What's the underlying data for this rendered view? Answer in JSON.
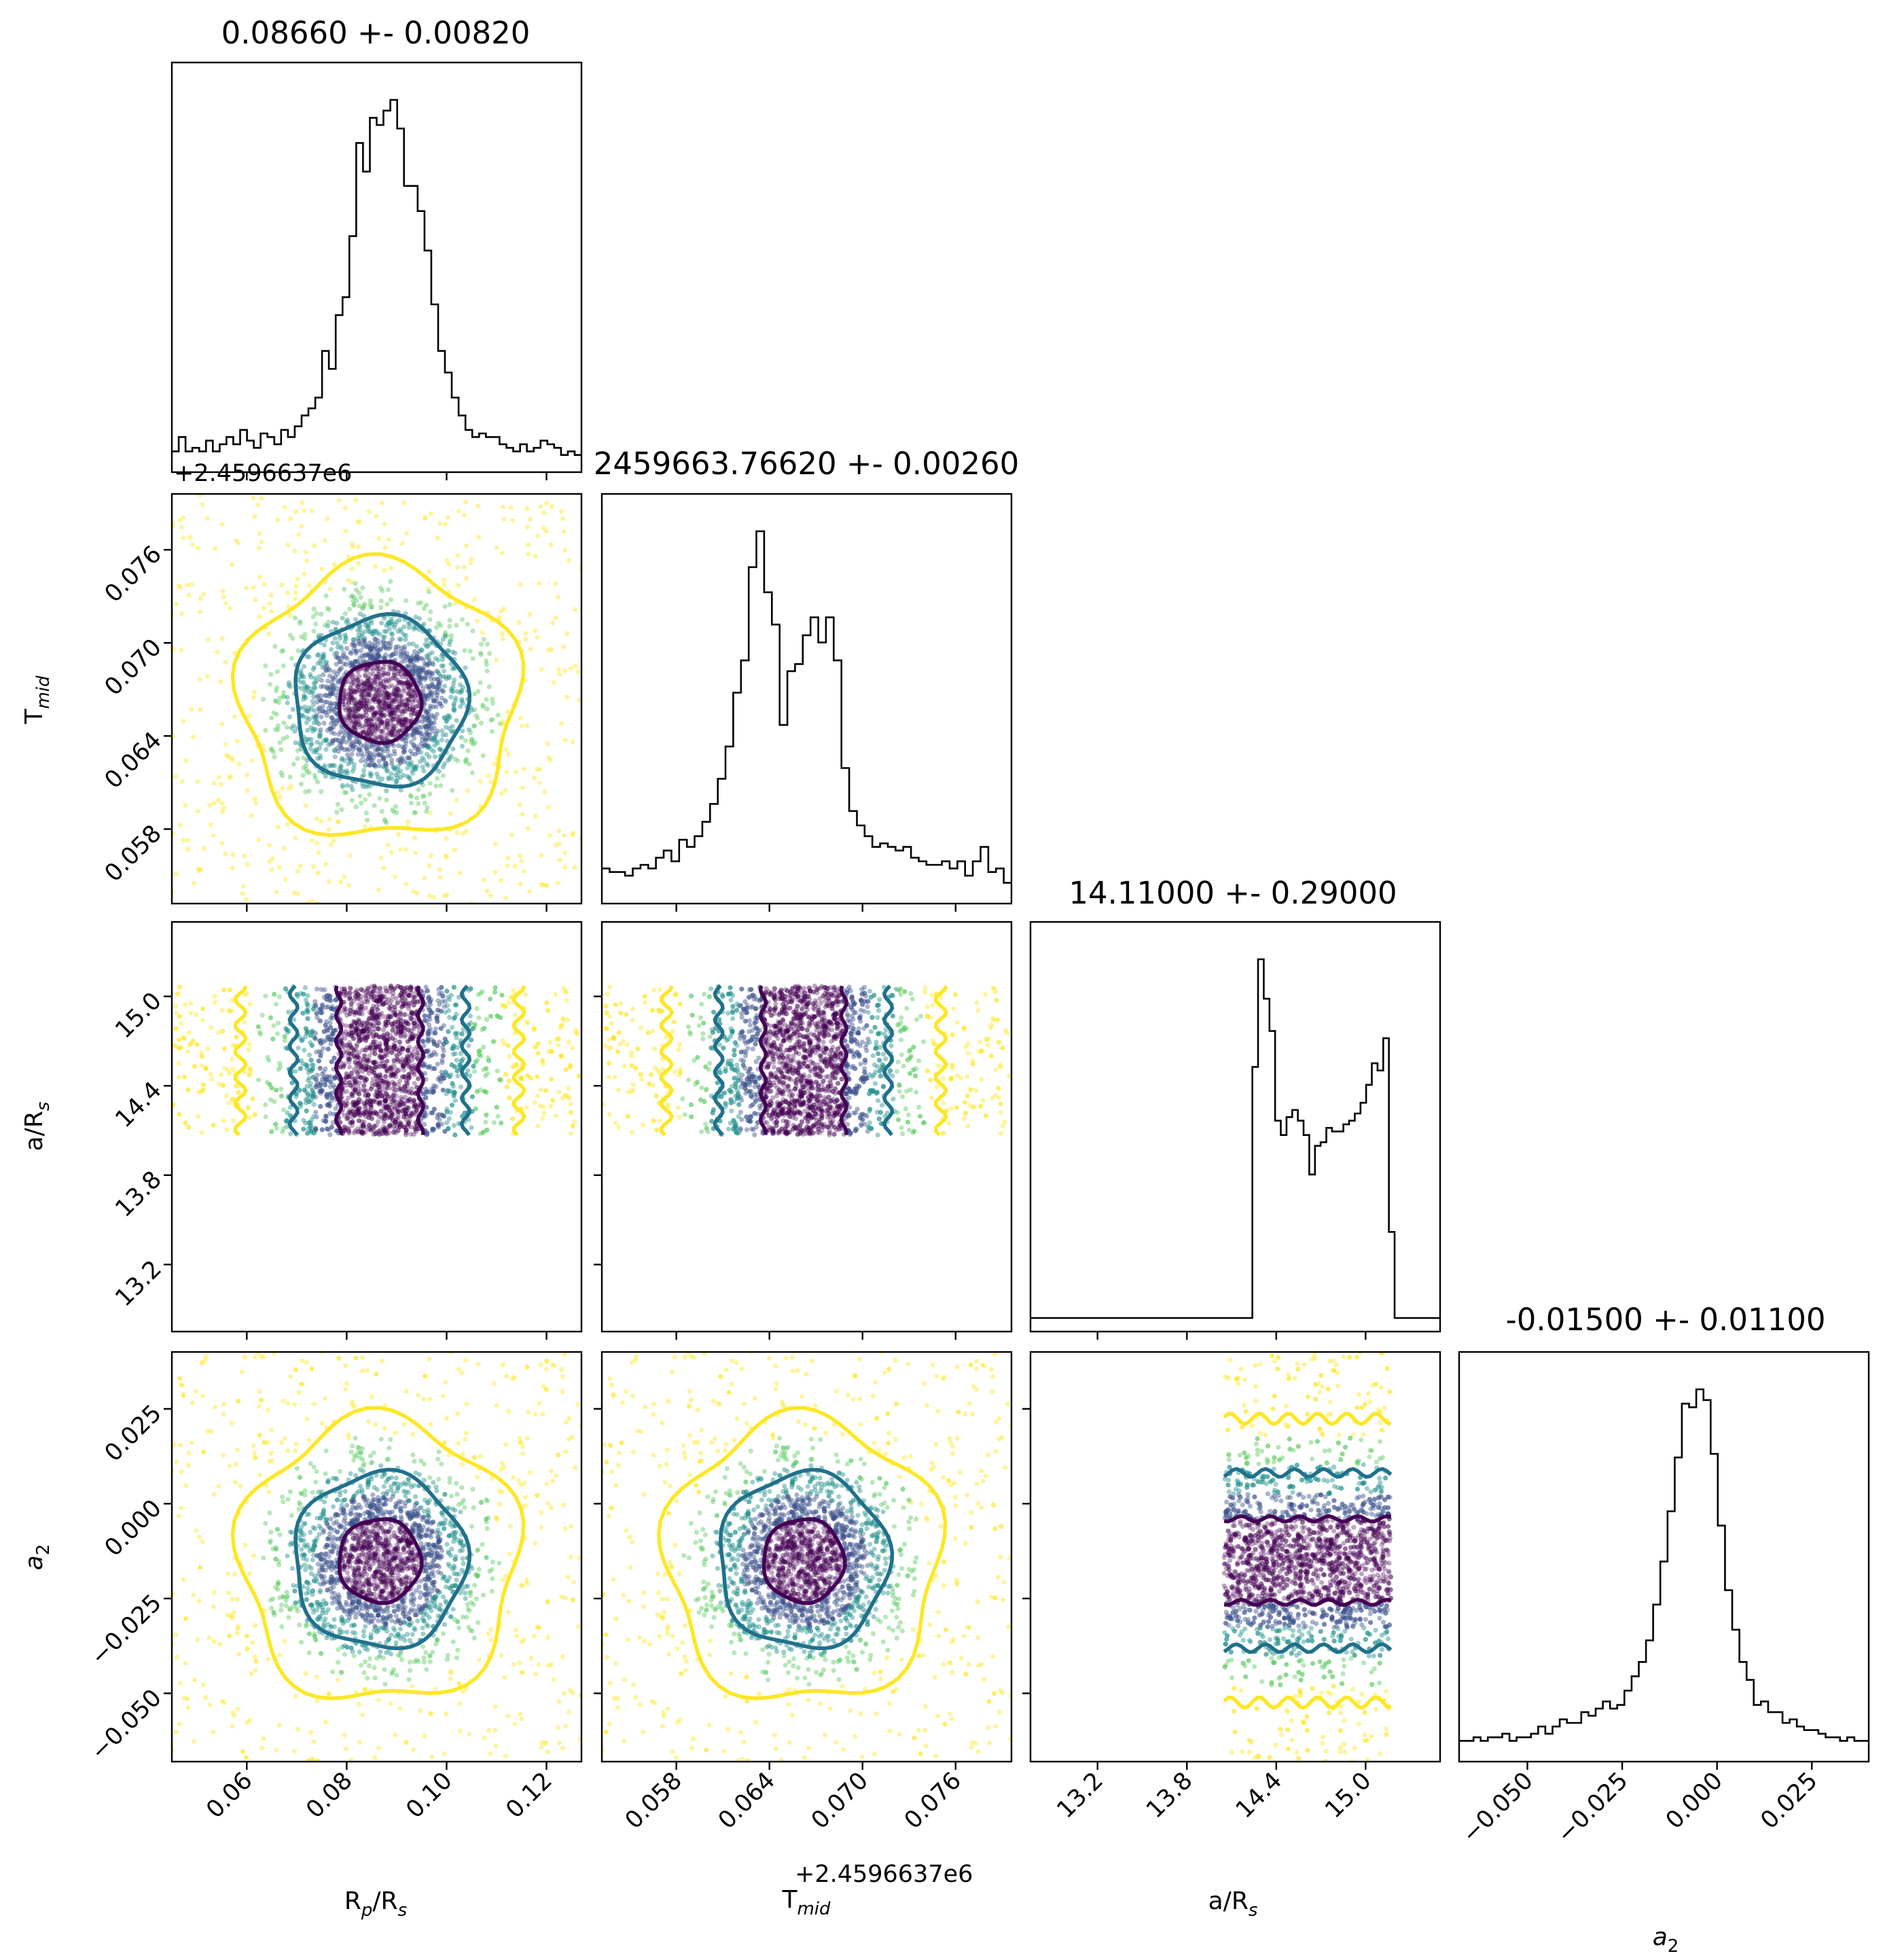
{
  "chart_data": {
    "type": "corner",
    "parameters": [
      {
        "key": "rp",
        "label": "R",
        "sub": "p",
        "label2": "/R",
        "sub2": "s",
        "xticks": [
          "0.06",
          "0.08",
          "0.10",
          "0.12"
        ],
        "range": [
          0.045,
          0.127
        ],
        "median": 0.0866,
        "sigma": 0.0082
      },
      {
        "key": "tmid",
        "label": "T",
        "sub": "mid",
        "label2": "",
        "sub2": "",
        "offset": "+2.4596637e6",
        "xticks": [
          "0.058",
          "0.064",
          "0.070",
          "0.076"
        ],
        "range": [
          0.0532,
          0.0796
        ],
        "median": 0.0662,
        "sigma": 0.0026
      },
      {
        "key": "ars",
        "label": "a/R",
        "sub": "s",
        "label2": "",
        "sub2": "",
        "xticks": [
          "13.2",
          "13.8",
          "14.4",
          "15.0"
        ],
        "range": [
          12.75,
          15.5
        ],
        "median": 14.11,
        "sigma": 0.29
      },
      {
        "key": "a2",
        "label": "a",
        "sub": "2",
        "label2": "",
        "sub2": "",
        "italic": true,
        "xticks": [
          "−0.050",
          "−0.025",
          "0.000",
          "0.025"
        ],
        "range": [
          -0.068,
          0.04
        ],
        "median": -0.015,
        "sigma": 0.011
      }
    ],
    "titles": [
      "0.08660 +- 0.00820",
      "2459663.76620 +- 0.00260",
      "14.11000 +- 0.29000",
      "-0.01500 +- 0.01100"
    ],
    "tick_values": [
      [
        0.06,
        0.08,
        0.1,
        0.12
      ],
      [
        0.058,
        0.064,
        0.07,
        0.076
      ],
      [
        13.2,
        13.8,
        14.4,
        15.0
      ],
      [
        -0.05,
        -0.025,
        0.0,
        0.025
      ]
    ],
    "histograms": {
      "rp": [
        0.02,
        0.06,
        0.02,
        0.03,
        0.02,
        0.05,
        0.02,
        0.04,
        0.06,
        0.04,
        0.08,
        0.05,
        0.03,
        0.07,
        0.06,
        0.04,
        0.08,
        0.06,
        0.09,
        0.12,
        0.14,
        0.17,
        0.3,
        0.25,
        0.4,
        0.45,
        0.62,
        0.88,
        0.8,
        0.95,
        0.93,
        0.97,
        1.0,
        0.92,
        0.76,
        0.76,
        0.69,
        0.58,
        0.43,
        0.3,
        0.24,
        0.17,
        0.12,
        0.08,
        0.06,
        0.07,
        0.06,
        0.06,
        0.04,
        0.03,
        0.02,
        0.04,
        0.02,
        0.03,
        0.05,
        0.04,
        0.03,
        0.01,
        0.02,
        0.01
      ],
      "tmid": [
        0.06,
        0.05,
        0.05,
        0.04,
        0.06,
        0.07,
        0.06,
        0.09,
        0.11,
        0.08,
        0.14,
        0.12,
        0.15,
        0.19,
        0.24,
        0.31,
        0.4,
        0.55,
        0.64,
        0.9,
        1.0,
        0.83,
        0.74,
        0.46,
        0.61,
        0.63,
        0.71,
        0.76,
        0.69,
        0.76,
        0.64,
        0.34,
        0.22,
        0.18,
        0.15,
        0.12,
        0.13,
        0.12,
        0.11,
        0.12,
        0.09,
        0.08,
        0.07,
        0.07,
        0.08,
        0.06,
        0.08,
        0.04,
        0.08,
        0.12,
        0.05,
        0.06,
        0.02
      ],
      "ars": [
        0,
        0,
        0,
        0,
        0,
        0,
        0,
        0,
        0,
        0,
        0,
        0,
        0,
        0,
        0,
        0,
        0,
        0,
        0,
        0,
        0,
        0,
        0,
        0,
        0,
        0,
        0,
        0,
        0,
        0,
        0,
        0,
        0,
        0,
        0,
        0,
        0,
        0,
        0,
        0.7,
        1.0,
        0.89,
        0.8,
        0.55,
        0.51,
        0.56,
        0.58,
        0.55,
        0.51,
        0.4,
        0.48,
        0.49,
        0.53,
        0.52,
        0.52,
        0.54,
        0.55,
        0.57,
        0.6,
        0.65,
        0.71,
        0.69,
        0.78,
        0.24,
        0,
        0,
        0,
        0,
        0,
        0,
        0,
        0
      ],
      "a2": [
        0.02,
        0.02,
        0.03,
        0.02,
        0.03,
        0.03,
        0.04,
        0.02,
        0.03,
        0.03,
        0.04,
        0.06,
        0.04,
        0.06,
        0.08,
        0.07,
        0.07,
        0.1,
        0.09,
        0.11,
        0.13,
        0.11,
        0.12,
        0.16,
        0.2,
        0.24,
        0.3,
        0.4,
        0.52,
        0.66,
        0.81,
        0.96,
        0.95,
        1.0,
        0.97,
        0.82,
        0.62,
        0.44,
        0.33,
        0.24,
        0.19,
        0.12,
        0.13,
        0.1,
        0.1,
        0.07,
        0.08,
        0.06,
        0.05,
        0.05,
        0.04,
        0.03,
        0.03,
        0.02,
        0.03,
        0.02,
        0.02
      ]
    },
    "colors": {
      "hist": "#000000",
      "scatter_ramp": [
        "#440154",
        "#3b528b",
        "#21918c",
        "#5ec962",
        "#fde725"
      ],
      "contour_inner": "#440154",
      "contour_mid": "#21708b",
      "contour_outer": "#fde725"
    }
  }
}
